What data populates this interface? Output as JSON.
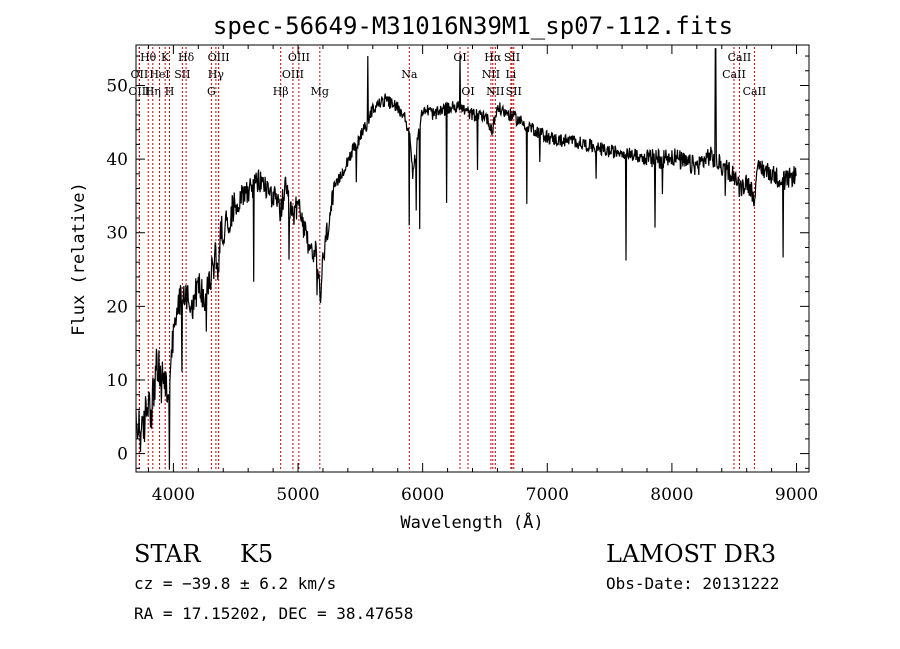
{
  "chart_data": {
    "type": "line",
    "title": "spec-56649-M31016N39M1_sp07-112.fits",
    "xlabel": "Wavelength (Å)",
    "ylabel": "Flux (relative)",
    "xlim": [
      3700,
      9100
    ],
    "ylim": [
      -2.5,
      55.5
    ],
    "xticks": [
      4000,
      5000,
      6000,
      7000,
      8000,
      9000
    ],
    "yticks": [
      0,
      10,
      20,
      30,
      40,
      50
    ],
    "grid": false,
    "line_color": "#000000",
    "marker_color": "#c00000",
    "series": [
      {
        "name": "flux",
        "x": [
          3700,
          3725,
          3750,
          3775,
          3800,
          3825,
          3850,
          3875,
          3900,
          3925,
          3950,
          3975,
          4000,
          4050,
          4100,
          4150,
          4200,
          4250,
          4300,
          4340,
          4360,
          4380,
          4420,
          4500,
          4600,
          4700,
          4800,
          4860,
          4900,
          4950,
          5000,
          5050,
          5100,
          5150,
          5180,
          5200,
          5250,
          5300,
          5400,
          5500,
          5560,
          5600,
          5700,
          5800,
          5850,
          5890,
          5920,
          6000,
          6100,
          6200,
          6300,
          6400,
          6500,
          6560,
          6600,
          6700,
          6800,
          6900,
          7000,
          7100,
          7200,
          7300,
          7400,
          7500,
          7600,
          7700,
          7800,
          7900,
          8000,
          8100,
          8200,
          8300,
          8400,
          8500,
          8540,
          8600,
          8660,
          8700,
          8800,
          8900,
          9000
        ],
        "y": [
          3,
          4,
          2,
          5,
          8,
          6,
          10,
          12,
          9,
          11,
          8,
          10,
          16,
          21,
          22,
          20,
          23,
          21,
          24,
          27,
          25,
          30,
          31,
          34,
          36,
          37,
          35,
          33,
          36,
          32,
          34,
          30,
          28,
          27,
          21,
          26,
          32,
          36,
          40,
          43,
          45,
          47,
          48,
          47,
          46,
          44,
          38,
          47,
          46,
          47,
          47,
          46,
          46,
          44,
          47,
          46,
          45,
          44,
          43,
          42.5,
          42.5,
          42,
          41.5,
          41,
          41,
          40.5,
          40,
          40,
          40.5,
          39.5,
          39,
          40.5,
          39,
          38,
          36,
          37,
          35,
          39,
          38,
          37,
          38
        ]
      }
    ],
    "line_markers": [
      {
        "label": "Hθ",
        "x": 3798,
        "row": 1
      },
      {
        "label": "OII",
        "x": 3727,
        "row": 2
      },
      {
        "label": "OIII",
        "x": 3727,
        "row": 3
      },
      {
        "label": "K",
        "x": 3934,
        "row": 1
      },
      {
        "label": "HeI",
        "x": 3889,
        "row": 2
      },
      {
        "label": "Hη",
        "x": 3835,
        "row": 3
      },
      {
        "label": "Hδ",
        "x": 4102,
        "row": 1
      },
      {
        "label": "SII",
        "x": 4072,
        "row": 2
      },
      {
        "label": "H",
        "x": 3969,
        "row": 3
      },
      {
        "label": "OIII",
        "x": 4363,
        "row": 1
      },
      {
        "label": "Hγ",
        "x": 4341,
        "row": 2
      },
      {
        "label": "G",
        "x": 4305,
        "row": 3
      },
      {
        "label": "OIII",
        "x": 5007,
        "row": 1
      },
      {
        "label": "OIII",
        "x": 4959,
        "row": 2
      },
      {
        "label": "Hβ",
        "x": 4861,
        "row": 3
      },
      {
        "label": "Mg",
        "x": 5175,
        "row": 3
      },
      {
        "label": "Na",
        "x": 5893,
        "row": 2
      },
      {
        "label": "OI",
        "x": 6300,
        "row": 1
      },
      {
        "label": "OI",
        "x": 6364,
        "row": 3
      },
      {
        "label": "Hα",
        "x": 6563,
        "row": 1
      },
      {
        "label": "SII",
        "x": 6717,
        "row": 1
      },
      {
        "label": "NII",
        "x": 6548,
        "row": 2
      },
      {
        "label": "Li",
        "x": 6708,
        "row": 2
      },
      {
        "label": "NII",
        "x": 6583,
        "row": 3
      },
      {
        "label": "SII",
        "x": 6731,
        "row": 3
      },
      {
        "label": "CaII",
        "x": 8542,
        "row": 1
      },
      {
        "label": "CaII",
        "x": 8498,
        "row": 2
      },
      {
        "label": "CaII",
        "x": 8662,
        "row": 3
      }
    ]
  },
  "info": {
    "class_label": "STAR",
    "subclass": "K5",
    "survey": "LAMOST DR3",
    "cz": "cz = −39.8 ± 6.2 km/s",
    "obs_date": "Obs-Date: 20131222",
    "coords": "RA =  17.15202, DEC =  38.47658"
  }
}
